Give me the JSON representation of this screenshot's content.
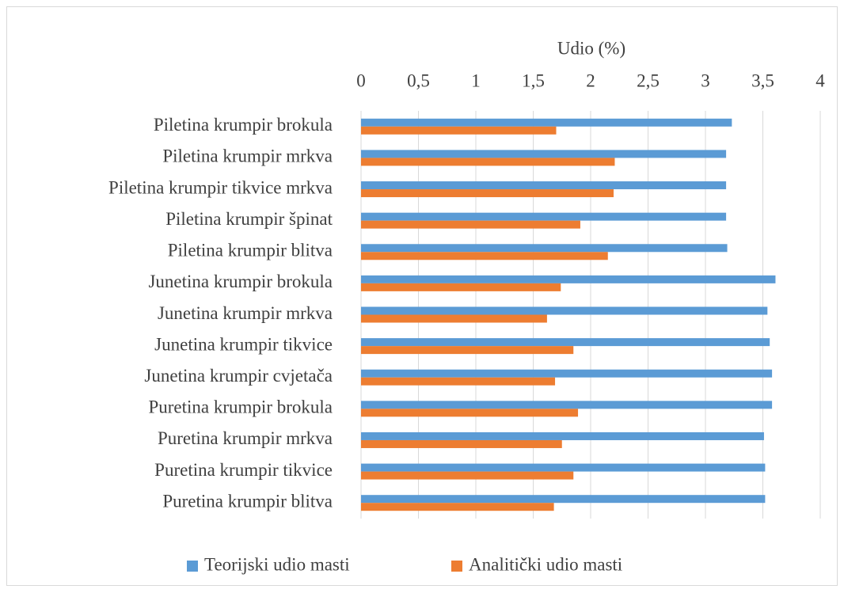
{
  "chart_data": {
    "type": "barh",
    "title": "Udio (%)",
    "categories": [
      "Piletina krumpir brokula",
      "Piletina krumpir mrkva",
      "Piletina krumpir tikvice mrkva",
      "Piletina krumpir špinat",
      "Piletina krumpir blitva",
      "Junetina krumpir brokula",
      "Junetina krumpir mrkva",
      "Junetina krumpir tikvice",
      "Junetina krumpir cvjetača",
      "Puretina krumpir brokula",
      "Puretina krumpir mrkva",
      "Puretina krumpir tikvice",
      "Puretina krumpir blitva"
    ],
    "series": [
      {
        "name": "Teorijski udio masti",
        "color": "#5b9bd5",
        "values": [
          3.23,
          3.18,
          3.18,
          3.18,
          3.19,
          3.61,
          3.54,
          3.56,
          3.58,
          3.58,
          3.51,
          3.52,
          3.52
        ]
      },
      {
        "name": "Analitički udio masti",
        "color": "#ed7d31",
        "values": [
          1.7,
          2.21,
          2.2,
          1.91,
          2.15,
          1.74,
          1.62,
          1.85,
          1.69,
          1.89,
          1.75,
          1.85,
          1.68
        ]
      }
    ],
    "xlim": [
      0,
      4
    ],
    "xticks": [
      0,
      {
        "value": 0.5,
        "label": "0,5"
      },
      1,
      {
        "value": 1.5,
        "label": "1,5"
      },
      2,
      {
        "value": 2.5,
        "label": "2,5"
      },
      3,
      {
        "value": 3.5,
        "label": "3,5"
      },
      4
    ],
    "grid": true,
    "legend": "bottom"
  }
}
